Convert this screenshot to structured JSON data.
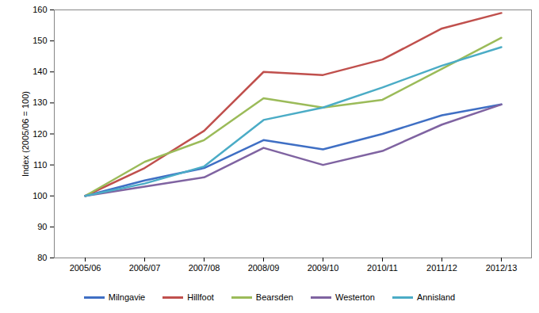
{
  "chart_data": {
    "type": "line",
    "y_label": "Index (2005/06 = 100)",
    "categories": [
      "2005/06",
      "2006/07",
      "2007/08",
      "2008/09",
      "2009/10",
      "2010/11",
      "2011/12",
      "2012/13"
    ],
    "series": [
      {
        "name": "Milngavie",
        "color": "#3f6fc4",
        "values": [
          100,
          105,
          109,
          118,
          115,
          120,
          126,
          129.5
        ]
      },
      {
        "name": "Hillfoot",
        "color": "#c0504d",
        "values": [
          100,
          109,
          121,
          140,
          139,
          144,
          154,
          159
        ]
      },
      {
        "name": "Bearsden",
        "color": "#9bbb59",
        "values": [
          100,
          111,
          118,
          131.5,
          128.5,
          131,
          141,
          151
        ]
      },
      {
        "name": "Westerton",
        "color": "#7f63a1",
        "values": [
          100,
          103,
          106,
          115.5,
          110,
          114.5,
          123,
          129.5
        ]
      },
      {
        "name": "Annisland",
        "color": "#4bacc6",
        "values": [
          100,
          104,
          109.5,
          124.5,
          128.5,
          135,
          142,
          148
        ]
      }
    ],
    "ylim": [
      80,
      160
    ],
    "yticks": [
      80,
      90,
      100,
      110,
      120,
      130,
      140,
      150,
      160
    ],
    "grid": false,
    "legend": "bottom"
  }
}
